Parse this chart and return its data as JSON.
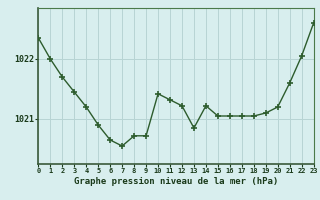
{
  "hours": [
    0,
    1,
    2,
    3,
    4,
    5,
    6,
    7,
    8,
    9,
    10,
    11,
    12,
    13,
    14,
    15,
    16,
    17,
    18,
    19,
    20,
    21,
    22,
    23
  ],
  "pressure": [
    1022.35,
    1022.0,
    1021.7,
    1021.45,
    1021.2,
    1020.9,
    1020.65,
    1020.55,
    1020.72,
    1020.72,
    1021.42,
    1021.32,
    1021.22,
    1020.85,
    1021.22,
    1021.05,
    1021.05,
    1021.05,
    1021.05,
    1021.1,
    1021.2,
    1021.6,
    1022.05,
    1022.6
  ],
  "line_color": "#2d5c2d",
  "marker_color": "#2d5c2d",
  "bg_color": "#d8eeee",
  "grid_color": "#b8d4d4",
  "xlabel": "Graphe pression niveau de la mer (hPa)",
  "xlabel_color": "#1a3a1a",
  "tick_label_color": "#1a3a1a",
  "ytick_labels": [
    "1021",
    "1022"
  ],
  "ytick_values": [
    1021.0,
    1022.0
  ],
  "ylim": [
    1020.25,
    1022.85
  ],
  "xlim": [
    0,
    23
  ],
  "border_color": "#4a7a4a"
}
